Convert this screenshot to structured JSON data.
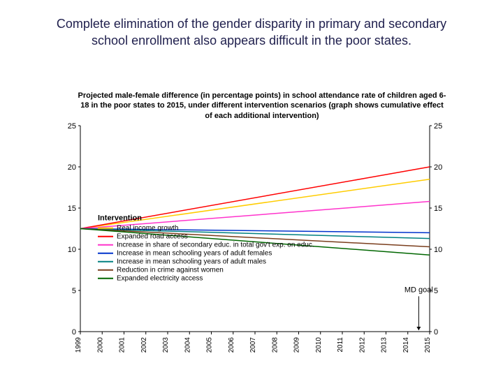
{
  "slide": {
    "title": "Complete elimination of the gender disparity in primary and secondary school enrollment also appears difficult in the poor states.",
    "title_color": "#1f1f4d",
    "title_fontsize": 18
  },
  "chart": {
    "type": "line",
    "subtitle": "Projected male-female difference (in percentage points) in school attendance rate of children aged 6-18 in the poor states to 2015, under different intervention scenarios (graph shows cumulative effect of each additional intervention)",
    "subtitle_fontsize": 11,
    "background_color": "#ffffff",
    "xlim": [
      1999,
      2015
    ],
    "ylim": [
      0,
      25
    ],
    "ytick_step": 5,
    "yticks": [
      0,
      5,
      10,
      15,
      20,
      25
    ],
    "xticks": [
      1999,
      2000,
      2001,
      2002,
      2003,
      2004,
      2005,
      2006,
      2007,
      2008,
      2009,
      2010,
      2011,
      2012,
      2013,
      2014,
      2015
    ],
    "axis_color": "#000000",
    "tick_fontsize": 11,
    "line_width": 1.5,
    "legend": {
      "title": "Intervention",
      "position": "inside-lower-left",
      "fontsize": 10,
      "swatch_length": 22,
      "items": [
        {
          "label": "Real income growth",
          "color": "#ffcc00"
        },
        {
          "label": "Expanded road access",
          "color": "#ff0000"
        },
        {
          "label": "Increase in share of secondary educ. in total gov't exp. on educ.",
          "color": "#ff33cc"
        },
        {
          "label": "Increase in mean schooling years of adult females",
          "color": "#0033cc"
        },
        {
          "label": "Increase in mean schooling years of adult males",
          "color": "#008080"
        },
        {
          "label": "Reduction in crime against women",
          "color": "#7a3e1d"
        },
        {
          "label": "Expanded electricity access",
          "color": "#006600"
        }
      ]
    },
    "annotation": {
      "label": "MD goal",
      "x": 2014.5,
      "y_label": 4.8,
      "arrow_to_y": 0,
      "fontsize": 11
    },
    "series": [
      {
        "name": "Real income growth",
        "color": "#ffcc00",
        "y0": 12.5,
        "y1": 18.5
      },
      {
        "name": "Expanded road access",
        "color": "#ff0000",
        "y0": 12.5,
        "y1": 20.0
      },
      {
        "name": "Increase in share of secondary educ.",
        "color": "#ff33cc",
        "y0": 12.5,
        "y1": 15.8
      },
      {
        "name": "Increase in mean schooling years of adult females",
        "color": "#0033cc",
        "y0": 12.5,
        "y1": 12.0
      },
      {
        "name": "Increase in mean schooling years of adult males",
        "color": "#008080",
        "y0": 12.5,
        "y1": 11.3
      },
      {
        "name": "Reduction in crime against women",
        "color": "#7a3e1d",
        "y0": 12.5,
        "y1": 10.3
      },
      {
        "name": "Expanded electricity access",
        "color": "#006600",
        "y0": 12.5,
        "y1": 9.3
      }
    ]
  }
}
